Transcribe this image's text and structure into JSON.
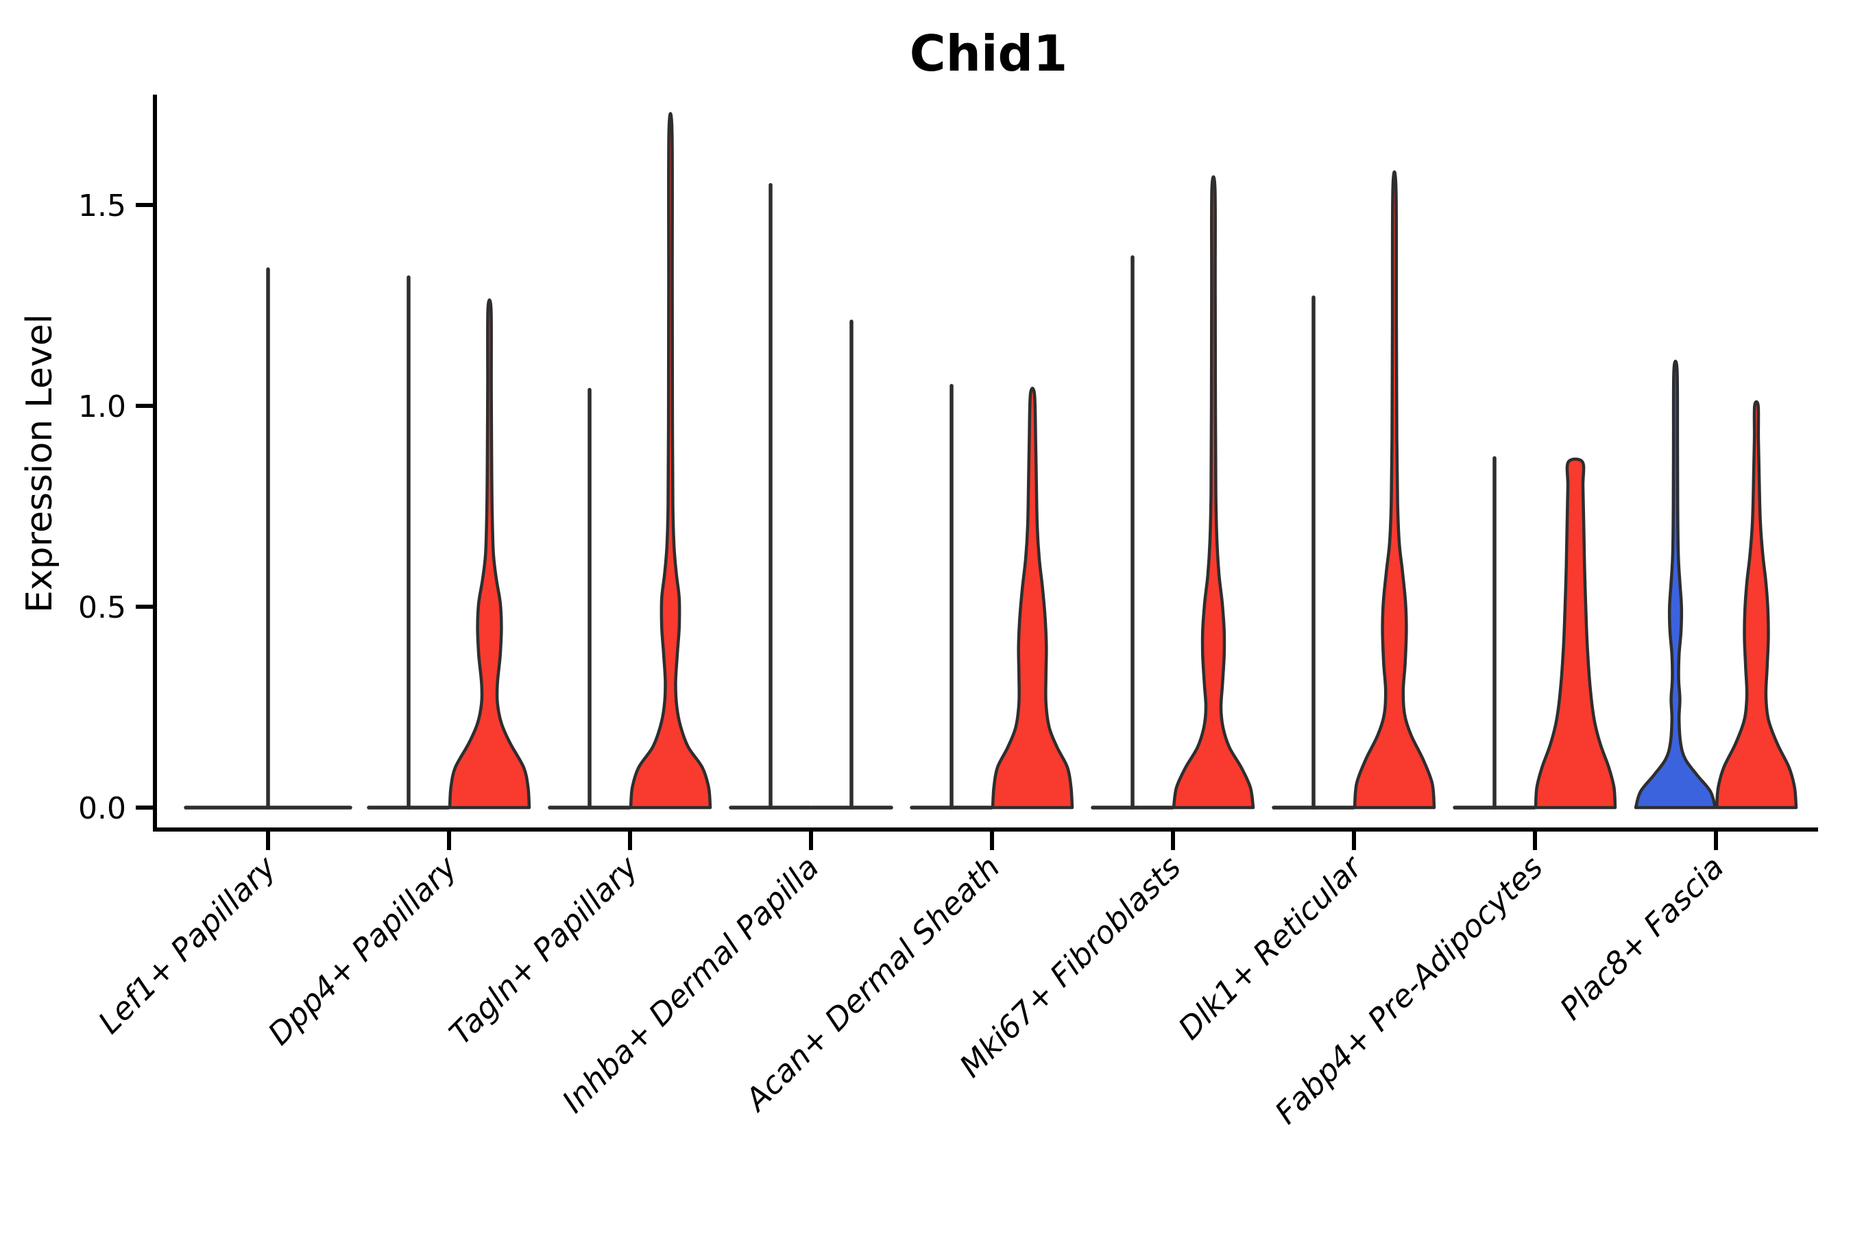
{
  "chart_data": {
    "type": "violin",
    "title": "Chid1",
    "ylabel": "Expression Level",
    "xlabel": "",
    "ylim": [
      -0.05,
      1.78
    ],
    "grid": false,
    "legend": "none",
    "yticks": [
      {
        "value": 0.0,
        "label": "0.0"
      },
      {
        "value": 0.5,
        "label": "0.5"
      },
      {
        "value": 1.0,
        "label": "1.0"
      },
      {
        "value": 1.5,
        "label": "1.5"
      }
    ],
    "colors": {
      "group_blue": "#3C63DE",
      "group_red": "#F93A2F",
      "outline": "#2E2E2E",
      "axis": "#000000"
    },
    "categories": [
      "Lef1+ Papillary",
      "Dpp4+ Papillary",
      "Tagln+ Papillary",
      "Inhba+ Dermal Papilla",
      "Acan+ Dermal Sheath",
      "Mki67+ Fibroblasts",
      "Dlk1+ Reticular",
      "Fabp4+ Pre-Adipocytes",
      "Plac8+ Fascia"
    ],
    "violins": [
      {
        "category": "Lef1+ Papillary",
        "slot": "full",
        "fill": "none",
        "shape": "spike",
        "max": 1.34
      },
      {
        "category": "Dpp4+ Papillary",
        "slot": "left",
        "fill": "none",
        "shape": "spike",
        "max": 1.32
      },
      {
        "category": "Dpp4+ Papillary",
        "slot": "right",
        "fill": "red",
        "shape": "density",
        "max": 1.24,
        "profile": [
          [
            0,
            1
          ],
          [
            0.05,
            0.97
          ],
          [
            0.1,
            0.86
          ],
          [
            0.16,
            0.52
          ],
          [
            0.21,
            0.3
          ],
          [
            0.26,
            0.2
          ],
          [
            0.31,
            0.2
          ],
          [
            0.38,
            0.27
          ],
          [
            0.45,
            0.3
          ],
          [
            0.51,
            0.27
          ],
          [
            0.57,
            0.17
          ],
          [
            0.63,
            0.1
          ],
          [
            0.72,
            0.07
          ],
          [
            0.85,
            0.055
          ],
          [
            1.05,
            0.045
          ],
          [
            1.24,
            0.04
          ]
        ]
      },
      {
        "category": "Tagln+ Papillary",
        "slot": "left",
        "fill": "none",
        "shape": "spike",
        "max": 1.04
      },
      {
        "category": "Tagln+ Papillary",
        "slot": "right",
        "fill": "red",
        "shape": "density",
        "max": 1.68,
        "profile": [
          [
            0,
            1
          ],
          [
            0.05,
            0.96
          ],
          [
            0.1,
            0.8
          ],
          [
            0.15,
            0.45
          ],
          [
            0.2,
            0.26
          ],
          [
            0.25,
            0.16
          ],
          [
            0.31,
            0.13
          ],
          [
            0.38,
            0.17
          ],
          [
            0.45,
            0.22
          ],
          [
            0.52,
            0.22
          ],
          [
            0.58,
            0.15
          ],
          [
            0.65,
            0.09
          ],
          [
            0.75,
            0.06
          ],
          [
            0.95,
            0.05
          ],
          [
            1.3,
            0.045
          ],
          [
            1.68,
            0.04
          ]
        ]
      },
      {
        "category": "Inhba+ Dermal Papilla",
        "slot": "left",
        "fill": "none",
        "shape": "spike",
        "max": 1.55
      },
      {
        "category": "Inhba+ Dermal Papilla",
        "slot": "right",
        "fill": "none",
        "shape": "spike",
        "max": 1.21
      },
      {
        "category": "Acan+ Dermal Sheath",
        "slot": "left",
        "fill": "none",
        "shape": "spike",
        "max": 1.05
      },
      {
        "category": "Acan+ Dermal Sheath",
        "slot": "right",
        "fill": "red",
        "shape": "density",
        "max": 1.03,
        "profile": [
          [
            0,
            1
          ],
          [
            0.05,
            0.97
          ],
          [
            0.1,
            0.88
          ],
          [
            0.15,
            0.62
          ],
          [
            0.2,
            0.42
          ],
          [
            0.26,
            0.34
          ],
          [
            0.33,
            0.34
          ],
          [
            0.4,
            0.35
          ],
          [
            0.47,
            0.32
          ],
          [
            0.55,
            0.25
          ],
          [
            0.62,
            0.17
          ],
          [
            0.7,
            0.12
          ],
          [
            0.8,
            0.1
          ],
          [
            0.92,
            0.08
          ],
          [
            1.03,
            0.05
          ]
        ]
      },
      {
        "category": "Mki67+ Fibroblasts",
        "slot": "left",
        "fill": "none",
        "shape": "spike",
        "max": 1.37
      },
      {
        "category": "Mki67+ Fibroblasts",
        "slot": "right",
        "fill": "red",
        "shape": "density",
        "max": 1.54,
        "profile": [
          [
            0,
            1
          ],
          [
            0.05,
            0.93
          ],
          [
            0.1,
            0.7
          ],
          [
            0.15,
            0.4
          ],
          [
            0.2,
            0.24
          ],
          [
            0.25,
            0.19
          ],
          [
            0.31,
            0.23
          ],
          [
            0.38,
            0.27
          ],
          [
            0.44,
            0.27
          ],
          [
            0.51,
            0.22
          ],
          [
            0.58,
            0.14
          ],
          [
            0.66,
            0.09
          ],
          [
            0.78,
            0.06
          ],
          [
            1.0,
            0.05
          ],
          [
            1.3,
            0.045
          ],
          [
            1.54,
            0.04
          ]
        ]
      },
      {
        "category": "Dlk1+ Reticular",
        "slot": "left",
        "fill": "none",
        "shape": "spike",
        "max": 1.27
      },
      {
        "category": "Dlk1+ Reticular",
        "slot": "right",
        "fill": "red",
        "shape": "density",
        "max": 1.54,
        "profile": [
          [
            0,
            1
          ],
          [
            0.06,
            0.95
          ],
          [
            0.12,
            0.72
          ],
          [
            0.18,
            0.42
          ],
          [
            0.23,
            0.26
          ],
          [
            0.29,
            0.22
          ],
          [
            0.36,
            0.27
          ],
          [
            0.44,
            0.3
          ],
          [
            0.51,
            0.28
          ],
          [
            0.59,
            0.2
          ],
          [
            0.66,
            0.12
          ],
          [
            0.76,
            0.08
          ],
          [
            0.92,
            0.06
          ],
          [
            1.2,
            0.05
          ],
          [
            1.54,
            0.04
          ]
        ]
      },
      {
        "category": "Fabp4+ Pre-Adipocytes",
        "slot": "left",
        "fill": "none",
        "shape": "spike",
        "max": 0.87
      },
      {
        "category": "Fabp4+ Pre-Adipocytes",
        "slot": "right",
        "fill": "red",
        "shape": "density",
        "max": 0.86,
        "profile": [
          [
            0,
            1
          ],
          [
            0.05,
            0.97
          ],
          [
            0.1,
            0.84
          ],
          [
            0.16,
            0.62
          ],
          [
            0.22,
            0.47
          ],
          [
            0.3,
            0.37
          ],
          [
            0.4,
            0.3
          ],
          [
            0.5,
            0.26
          ],
          [
            0.6,
            0.23
          ],
          [
            0.7,
            0.21
          ],
          [
            0.8,
            0.19
          ],
          [
            0.86,
            0.18
          ]
        ]
      },
      {
        "category": "Plac8+ Fascia",
        "slot": "left",
        "fill": "blue",
        "shape": "density",
        "max": 1.09,
        "profile": [
          [
            0,
            1
          ],
          [
            0.04,
            0.88
          ],
          [
            0.08,
            0.55
          ],
          [
            0.12,
            0.25
          ],
          [
            0.16,
            0.13
          ],
          [
            0.22,
            0.09
          ],
          [
            0.27,
            0.11
          ],
          [
            0.32,
            0.08
          ],
          [
            0.38,
            0.09
          ],
          [
            0.44,
            0.14
          ],
          [
            0.5,
            0.15
          ],
          [
            0.56,
            0.11
          ],
          [
            0.63,
            0.07
          ],
          [
            0.75,
            0.055
          ],
          [
            0.92,
            0.05
          ],
          [
            1.09,
            0.04
          ]
        ]
      },
      {
        "category": "Plac8+ Fascia",
        "slot": "right",
        "fill": "red",
        "shape": "density",
        "max": 1.0,
        "profile": [
          [
            0,
            1
          ],
          [
            0.05,
            0.96
          ],
          [
            0.1,
            0.82
          ],
          [
            0.16,
            0.52
          ],
          [
            0.22,
            0.3
          ],
          [
            0.28,
            0.24
          ],
          [
            0.35,
            0.27
          ],
          [
            0.42,
            0.3
          ],
          [
            0.49,
            0.29
          ],
          [
            0.56,
            0.24
          ],
          [
            0.63,
            0.16
          ],
          [
            0.71,
            0.1
          ],
          [
            0.82,
            0.07
          ],
          [
            0.92,
            0.05
          ],
          [
            1.0,
            0.045
          ]
        ]
      }
    ]
  }
}
